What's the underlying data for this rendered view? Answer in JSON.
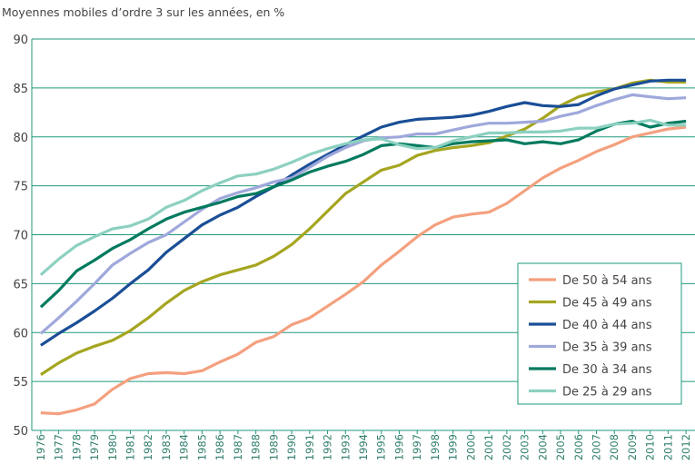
{
  "chart_data": {
    "type": "line",
    "title": "Moyennes mobiles d’ordre 3 sur les années, en %",
    "categories": [
      "1976",
      "1977",
      "1978",
      "1979",
      "1980",
      "1981",
      "1982",
      "1983",
      "1984",
      "1985",
      "1986",
      "1987",
      "1988",
      "1989",
      "1990",
      "1991",
      "1992",
      "1993",
      "1994",
      "1995",
      "1996",
      "1997",
      "1998",
      "1999",
      "2000",
      "2001",
      "2002",
      "2003",
      "2004",
      "2005",
      "2006",
      "2007",
      "2008",
      "2009",
      "2010",
      "2011",
      "2012"
    ],
    "series": [
      {
        "name": "De 50 à 54 ans",
        "color": "#f4a07e",
        "values": [
          51.8,
          51.7,
          52.1,
          52.7,
          54.2,
          55.3,
          55.8,
          55.9,
          55.8,
          56.1,
          57.0,
          57.8,
          59.0,
          59.6,
          60.8,
          61.5,
          62.7,
          63.9,
          65.2,
          66.9,
          68.3,
          69.8,
          71.0,
          71.8,
          72.1,
          72.3,
          73.2,
          74.5,
          75.8,
          76.8,
          77.6,
          78.5,
          79.2,
          80.0,
          80.4,
          80.8,
          81.0
        ]
      },
      {
        "name": "De 45 à 49 ans",
        "color": "#a5a521",
        "values": [
          55.7,
          56.9,
          57.9,
          58.6,
          59.2,
          60.2,
          61.5,
          63.0,
          64.3,
          65.2,
          65.9,
          66.4,
          66.9,
          67.8,
          69.0,
          70.6,
          72.4,
          74.2,
          75.4,
          76.6,
          77.1,
          78.1,
          78.6,
          78.9,
          79.1,
          79.4,
          80.1,
          80.8,
          81.9,
          83.2,
          84.1,
          84.6,
          84.9,
          85.5,
          85.8,
          85.6,
          85.6
        ]
      },
      {
        "name": "De 40 à 44 ans",
        "color": "#1a4e96",
        "values": [
          58.7,
          59.9,
          61.0,
          62.2,
          63.5,
          65.0,
          66.4,
          68.2,
          69.6,
          71.0,
          72.0,
          72.8,
          73.9,
          74.9,
          76.1,
          77.2,
          78.2,
          79.2,
          80.1,
          81.0,
          81.5,
          81.8,
          81.9,
          82.0,
          82.2,
          82.6,
          83.1,
          83.5,
          83.2,
          83.1,
          83.3,
          84.2,
          84.9,
          85.3,
          85.7,
          85.8,
          85.8
        ]
      },
      {
        "name": "De 35 à 39 ans",
        "color": "#9fa8db",
        "values": [
          59.9,
          61.5,
          63.2,
          65.0,
          66.9,
          68.1,
          69.2,
          70.0,
          71.3,
          72.6,
          73.7,
          74.3,
          74.8,
          75.4,
          75.8,
          76.9,
          78.0,
          78.9,
          79.6,
          79.9,
          80.0,
          80.3,
          80.3,
          80.7,
          81.1,
          81.4,
          81.4,
          81.5,
          81.6,
          82.1,
          82.5,
          83.2,
          83.8,
          84.3,
          84.1,
          83.9,
          84.0
        ]
      },
      {
        "name": "De 30 à 34 ans",
        "color": "#007a5e",
        "values": [
          62.6,
          64.3,
          66.3,
          67.4,
          68.6,
          69.5,
          70.6,
          71.6,
          72.3,
          72.8,
          73.3,
          73.9,
          74.2,
          74.9,
          75.6,
          76.4,
          77.0,
          77.5,
          78.2,
          79.1,
          79.3,
          79.1,
          78.9,
          79.3,
          79.5,
          79.6,
          79.7,
          79.3,
          79.5,
          79.3,
          79.7,
          80.6,
          81.3,
          81.6,
          81.0,
          81.4,
          81.6
        ]
      },
      {
        "name": "De 25 à 29 ans",
        "color": "#8cd0c0",
        "values": [
          65.9,
          67.5,
          68.9,
          69.8,
          70.6,
          70.9,
          71.6,
          72.8,
          73.5,
          74.5,
          75.3,
          76.0,
          76.2,
          76.7,
          77.4,
          78.2,
          78.8,
          79.3,
          79.7,
          79.8,
          79.2,
          78.8,
          78.9,
          79.6,
          80.0,
          80.4,
          80.4,
          80.5,
          80.5,
          80.6,
          80.9,
          80.9,
          81.3,
          81.4,
          81.7,
          81.2,
          81.2
        ]
      }
    ],
    "ylim": [
      50,
      90
    ],
    "yticks": [
      50,
      55,
      60,
      65,
      70,
      75,
      80,
      85,
      90
    ],
    "grid": true,
    "legend": "lower right"
  }
}
